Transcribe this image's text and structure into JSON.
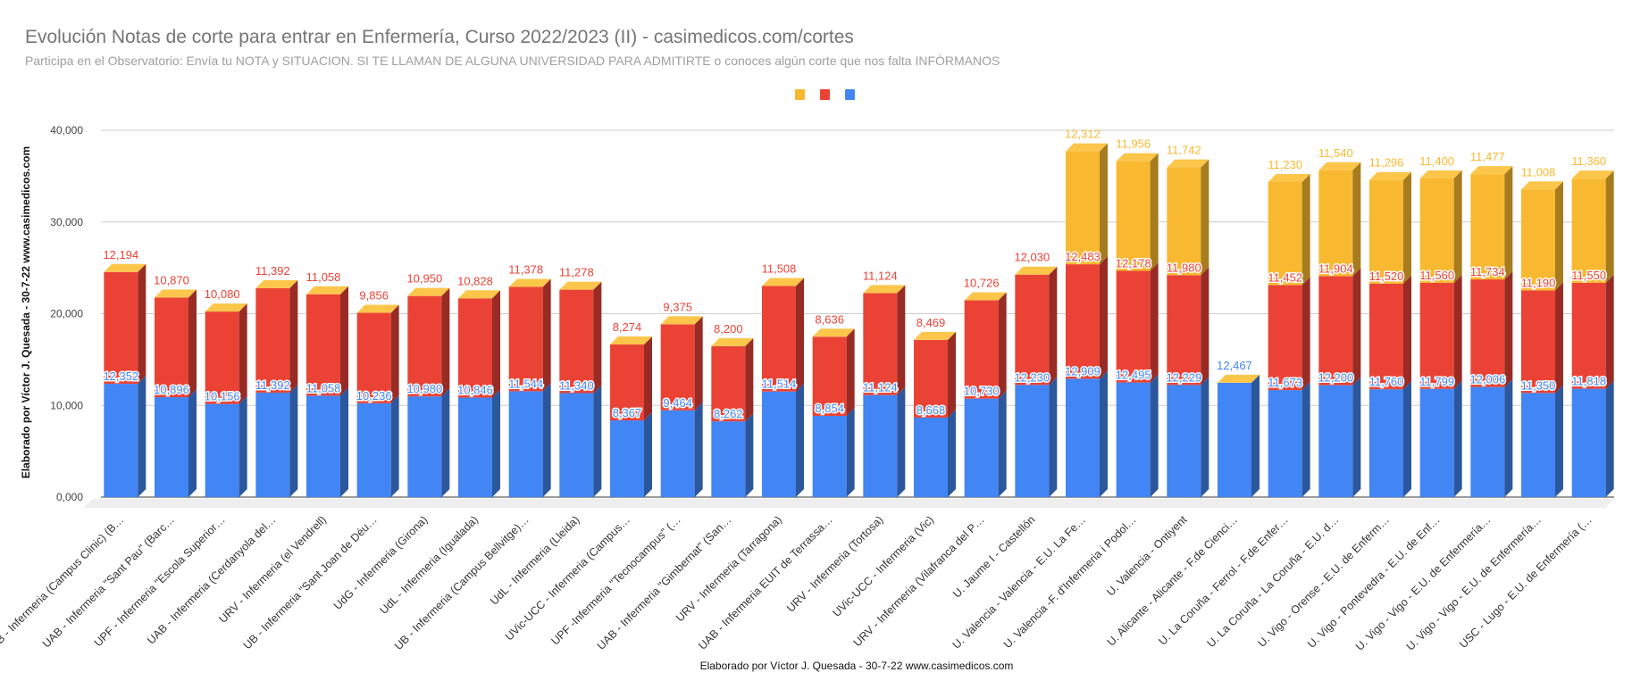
{
  "title": "Evolución Notas de corte para entrar en Enfermería, Curso 2022/2023 (II) - casimedicos.com/cortes",
  "subtitle": "Participa en el Observatorio: Envía tu NOTA y SITUACION. SI TE LLAMAN DE ALGUNA UNIVERSIDAD PARA ADMITIRTE o conoces algún corte que nos falta INFÓRMANOS",
  "chart_data": {
    "type": "bar",
    "stacked": true,
    "style": "3d",
    "xlabel": "Elaborado por Víctor J. Quesada - 30-7-22  www.casimedicos.com",
    "ylabel": "Elaborado por Víctor J. Quesada - 30-7-22  www.casimedicos.com",
    "ylim": [
      0,
      40000
    ],
    "yticks": [
      "0,000",
      "10,000",
      "20,000",
      "30,000",
      "40,000"
    ],
    "grid": true,
    "legend_position": "top",
    "categories": [
      "UB - Infermeria (Campus Clinic) (B…",
      "UAB - Infermeria \"Sant Pau\" (Barc…",
      "UPF - Infermeria \"Escola Superior…",
      "UAB - Infermeria (Cerdanyola del…",
      "URV - Infermeria (el Vendrell)",
      "UB - Infermeria \"Sant Joan de Déu…",
      "UdG - Infermeria (Girona)",
      "UdL - Infermeria (Igualada)",
      "UB - Infermeria (Campus Bellvitge)…",
      "UdL - Infermeria (Lleida)",
      "UVic-UCC - Infermeria (Campus…",
      "UPF -Infermeria \"Tecnocampus\" (…",
      "UAB - Infermeria \"Gimbernat\" (San…",
      "URV - Infermeria (Tarragona)",
      "UAB - Infermeria EUIT de Terrassa…",
      "URV - Infermeria (Tortosa)",
      "UVic-UCC - Infermeria (Vic)",
      "URV - Infermeria (Vilafranca del P…",
      "U. Jaume I - Castellón",
      "U. Valencia - Valencia - E.U. La Fe…",
      "U. Valencia -F. d'Infermeria i Podol…",
      "U. Valencia - Ontiyent",
      "U. Alicante - Alicante - F.de Cienci…",
      "U. La Coruña - Ferrol - F.de Enfer…",
      "U. La Coruña - La Coruña - E.U. d…",
      "U. Vigo - Orense - E.U. de Enferm…",
      "U. Vigo - Pontevedra - E.U. de Enf…",
      "U. Vigo - Vigo - E.U. de Enfermería…",
      "U. Vigo - Vigo - E.U. de Enfermería…",
      "USC - Lugo - E.U. de Enfermería (…"
    ],
    "series": [
      {
        "color": "#4285f4",
        "side": "#2c579c",
        "values": [
          12352,
          10896,
          10156,
          11392,
          11058,
          10236,
          10980,
          10846,
          11544,
          11340,
          8367,
          9464,
          8262,
          11514,
          8854,
          11124,
          8668,
          10730,
          12230,
          12909,
          12495,
          12229,
          12467,
          11673,
          12200,
          11760,
          11799,
          12006,
          11350,
          11818
        ]
      },
      {
        "color": "#ea4335",
        "side": "#992b25",
        "values": [
          12194,
          10870,
          10080,
          11392,
          11058,
          9856,
          10950,
          10828,
          11378,
          11278,
          8274,
          9375,
          8200,
          11508,
          8636,
          11124,
          8469,
          10726,
          12030,
          12483,
          12178,
          11980,
          null,
          11452,
          11904,
          11520,
          11560,
          11734,
          11190,
          11550
        ]
      },
      {
        "color": "#f8b930",
        "side": "#a67c1e",
        "values": [
          null,
          null,
          null,
          null,
          null,
          null,
          null,
          null,
          null,
          null,
          null,
          null,
          null,
          null,
          null,
          null,
          null,
          null,
          null,
          12312,
          11956,
          11742,
          null,
          11230,
          11540,
          11296,
          11400,
          11477,
          11008,
          11360
        ]
      }
    ],
    "top_color": "#fcc64b"
  }
}
